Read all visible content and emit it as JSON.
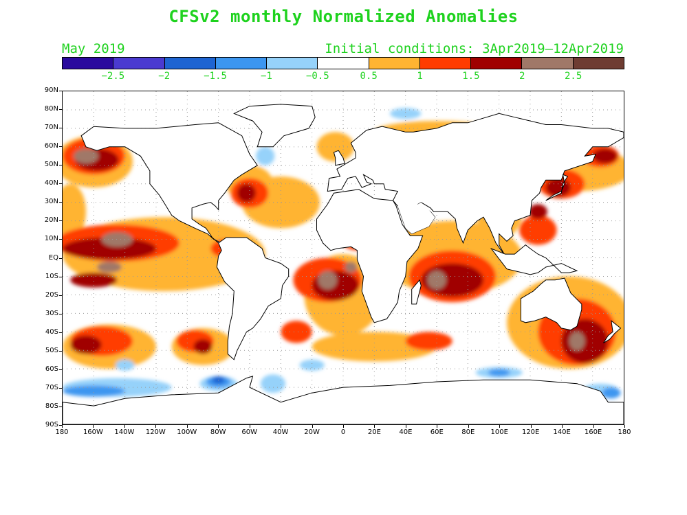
{
  "title": "CFSv2 monthly Normalized Anomalies",
  "valid_month": "May 2019",
  "initial_conditions": "Initial conditions: 3Apr2019–12Apr2019",
  "colorbar": {
    "colors": [
      "#2a0a9e",
      "#4a3ad0",
      "#1e64d2",
      "#3c96f0",
      "#96d2fa",
      "#ffffff",
      "#ffb432",
      "#ff3c00",
      "#a00000",
      "#a07868",
      "#6e3c32"
    ],
    "labels": [
      "−2.5",
      "−2",
      "−1.5",
      "−1",
      "−0.5",
      "0.5",
      "1",
      "1.5",
      "2",
      "2.5"
    ]
  },
  "axes": {
    "lat_labels": [
      "90N",
      "80N",
      "70N",
      "60N",
      "50N",
      "40N",
      "30N",
      "20N",
      "10N",
      "EQ",
      "10S",
      "20S",
      "30S",
      "40S",
      "50S",
      "60S",
      "70S",
      "80S",
      "90S"
    ],
    "lon_labels": [
      "180",
      "160W",
      "140W",
      "120W",
      "100W",
      "80W",
      "60W",
      "40W",
      "20W",
      "0",
      "20E",
      "40E",
      "60E",
      "80E",
      "100E",
      "120E",
      "140E",
      "160E",
      "180"
    ]
  },
  "map": {
    "projection": "cylindrical equidistant",
    "lon_range": [
      -180,
      180
    ],
    "lat_range": [
      -90,
      90
    ],
    "grid": "dotted every 20° lon, 10° lat",
    "field": "normalized sea surface temperature anomalies"
  }
}
